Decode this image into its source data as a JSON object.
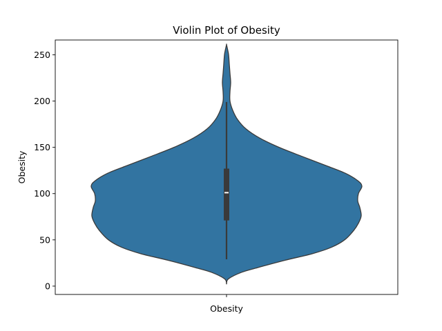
{
  "chart_data": {
    "type": "violin",
    "title": "Violin Plot of Obesity",
    "xlabel": "",
    "ylabel": "Obesity",
    "categories": [
      "Obesity"
    ],
    "ylim": [
      -9,
      266
    ],
    "yticks": [
      0,
      50,
      100,
      150,
      200,
      250
    ],
    "fill_color": "#3274a1",
    "edge_color": "#3a3a3a",
    "grid": false,
    "summary": {
      "min": 29,
      "q1": 71,
      "median": 101,
      "q3": 127,
      "max": 199
    },
    "density_profile": [
      {
        "y": 3,
        "half_width": 0
      },
      {
        "y": 8,
        "half_width": 3
      },
      {
        "y": 15,
        "half_width": 22
      },
      {
        "y": 20,
        "half_width": 45
      },
      {
        "y": 28,
        "half_width": 85
      },
      {
        "y": 35,
        "half_width": 124
      },
      {
        "y": 42,
        "half_width": 152
      },
      {
        "y": 50,
        "half_width": 171
      },
      {
        "y": 60,
        "half_width": 184
      },
      {
        "y": 68,
        "half_width": 191
      },
      {
        "y": 76,
        "half_width": 195
      },
      {
        "y": 85,
        "half_width": 193
      },
      {
        "y": 92,
        "half_width": 190
      },
      {
        "y": 100,
        "half_width": 191
      },
      {
        "y": 108,
        "half_width": 196
      },
      {
        "y": 114,
        "half_width": 190
      },
      {
        "y": 122,
        "half_width": 172
      },
      {
        "y": 130,
        "half_width": 145
      },
      {
        "y": 140,
        "half_width": 110
      },
      {
        "y": 150,
        "half_width": 76
      },
      {
        "y": 160,
        "half_width": 48
      },
      {
        "y": 170,
        "half_width": 28
      },
      {
        "y": 180,
        "half_width": 16
      },
      {
        "y": 190,
        "half_width": 9
      },
      {
        "y": 200,
        "half_width": 5
      },
      {
        "y": 210,
        "half_width": 5
      },
      {
        "y": 220,
        "half_width": 6
      },
      {
        "y": 230,
        "half_width": 5
      },
      {
        "y": 240,
        "half_width": 4
      },
      {
        "y": 250,
        "half_width": 3
      },
      {
        "y": 256,
        "half_width": 1.5
      },
      {
        "y": 261,
        "half_width": 0
      }
    ]
  }
}
